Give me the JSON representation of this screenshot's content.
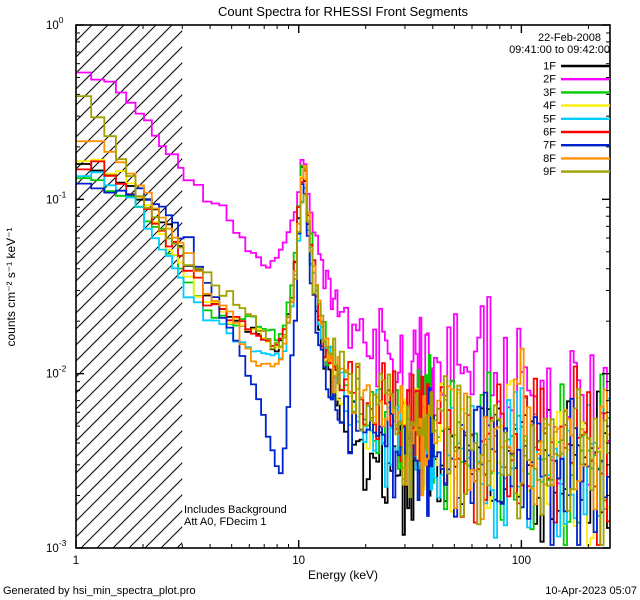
{
  "chart_data": {
    "type": "line",
    "title": "Count Spectra for RHESSI Front Segments",
    "xlabel": "Energy (keV)",
    "ylabel": "counts cm⁻² s⁻¹ keV⁻¹",
    "xscale": "log",
    "yscale": "log",
    "xlim": [
      1,
      250
    ],
    "ylim": [
      0.001,
      1
    ],
    "grid": false,
    "legend_position": "top-right",
    "x_ticks": {
      "values": [
        1,
        10,
        100
      ],
      "labels": [
        "1",
        "10",
        "100"
      ]
    },
    "y_ticks": {
      "values": [
        0.001,
        0.01,
        0.1,
        1
      ],
      "labels": [
        "10^-3",
        "10^-2",
        "10^-1",
        "10^0"
      ]
    },
    "hatched_region_kev": [
      1,
      3
    ],
    "annotations": {
      "date": "22-Feb-2008",
      "time_range": "09:41:00 to 09:42:00",
      "note1": "Includes Background",
      "note2": "Att A0, FDecim 1"
    },
    "anchor_energies_kev": [
      1.0,
      1.3,
      1.6,
      2.0,
      2.5,
      3.2,
      4.0,
      5.0,
      6.3,
      7.5,
      8.5,
      9.5,
      10.5,
      11.5,
      13,
      16,
      20,
      30,
      50,
      80,
      120,
      200,
      300
    ],
    "series": [
      {
        "name": "1F",
        "color": "#000000",
        "values": [
          0.16,
          0.15,
          0.13,
          0.1,
          0.072,
          0.044,
          0.028,
          0.021,
          0.017,
          0.014,
          0.015,
          0.03,
          0.17,
          0.035,
          0.012,
          0.005,
          0.0032,
          0.0026,
          0.003,
          0.0034,
          0.003,
          0.0028,
          0.0026
        ]
      },
      {
        "name": "2F",
        "color": "#ff00ff",
        "values": [
          0.48,
          0.5,
          0.42,
          0.3,
          0.2,
          0.135,
          0.098,
          0.075,
          0.047,
          0.04,
          0.053,
          0.075,
          0.19,
          0.075,
          0.035,
          0.022,
          0.016,
          0.01,
          0.0085,
          0.0075,
          0.0068,
          0.0062,
          0.0058
        ]
      },
      {
        "name": "3F",
        "color": "#00cc00",
        "values": [
          0.13,
          0.12,
          0.105,
          0.085,
          0.058,
          0.034,
          0.023,
          0.019,
          0.022,
          0.017,
          0.016,
          0.034,
          0.23,
          0.046,
          0.015,
          0.008,
          0.006,
          0.005,
          0.0042,
          0.004,
          0.0036,
          0.0032,
          0.003
        ]
      },
      {
        "name": "4F",
        "color": "#ffee00",
        "values": [
          0.19,
          0.165,
          0.135,
          0.095,
          0.058,
          0.036,
          0.025,
          0.02,
          0.018,
          0.015,
          0.014,
          0.028,
          0.16,
          0.042,
          0.014,
          0.008,
          0.0058,
          0.0046,
          0.004,
          0.0036,
          0.0032,
          0.003,
          0.0028
        ]
      },
      {
        "name": "5F",
        "color": "#00ccff",
        "values": [
          0.15,
          0.14,
          0.12,
          0.082,
          0.05,
          0.03,
          0.02,
          0.016,
          0.014,
          0.013,
          0.013,
          0.026,
          0.15,
          0.038,
          0.013,
          0.0075,
          0.0055,
          0.0045,
          0.004,
          0.0035,
          0.0031,
          0.0029,
          0.0027
        ]
      },
      {
        "name": "6F",
        "color": "#ff0000",
        "values": [
          0.17,
          0.155,
          0.125,
          0.096,
          0.064,
          0.04,
          0.026,
          0.021,
          0.017,
          0.015,
          0.015,
          0.031,
          0.17,
          0.043,
          0.015,
          0.0085,
          0.0062,
          0.005,
          0.0045,
          0.004,
          0.0036,
          0.0033,
          0.003
        ]
      },
      {
        "name": "7F",
        "color": "#0022cc",
        "values": [
          0.12,
          0.115,
          0.112,
          0.105,
          0.085,
          0.056,
          0.03,
          0.017,
          0.0085,
          0.0038,
          0.0026,
          0.016,
          0.16,
          0.03,
          0.01,
          0.006,
          0.0046,
          0.004,
          0.0036,
          0.0034,
          0.0031,
          0.0029,
          0.0027
        ]
      },
      {
        "name": "8F",
        "color": "#ff9100",
        "values": [
          0.22,
          0.2,
          0.16,
          0.115,
          0.075,
          0.046,
          0.029,
          0.021,
          0.012,
          0.011,
          0.013,
          0.029,
          0.17,
          0.043,
          0.016,
          0.009,
          0.0065,
          0.0052,
          0.0046,
          0.0041,
          0.0037,
          0.0033,
          0.0031
        ]
      },
      {
        "name": "9F",
        "color": "#a0a000",
        "values": [
          0.42,
          0.3,
          0.17,
          0.1,
          0.064,
          0.046,
          0.034,
          0.027,
          0.02,
          0.016,
          0.014,
          0.029,
          0.14,
          0.04,
          0.017,
          0.0095,
          0.0068,
          0.005,
          0.0042,
          0.0037,
          0.0032,
          0.003,
          0.0028
        ]
      }
    ]
  },
  "footer": {
    "left": "Generated by hsi_min_spectra_plot.pro",
    "right": "10-Apr-2023 05:07"
  }
}
